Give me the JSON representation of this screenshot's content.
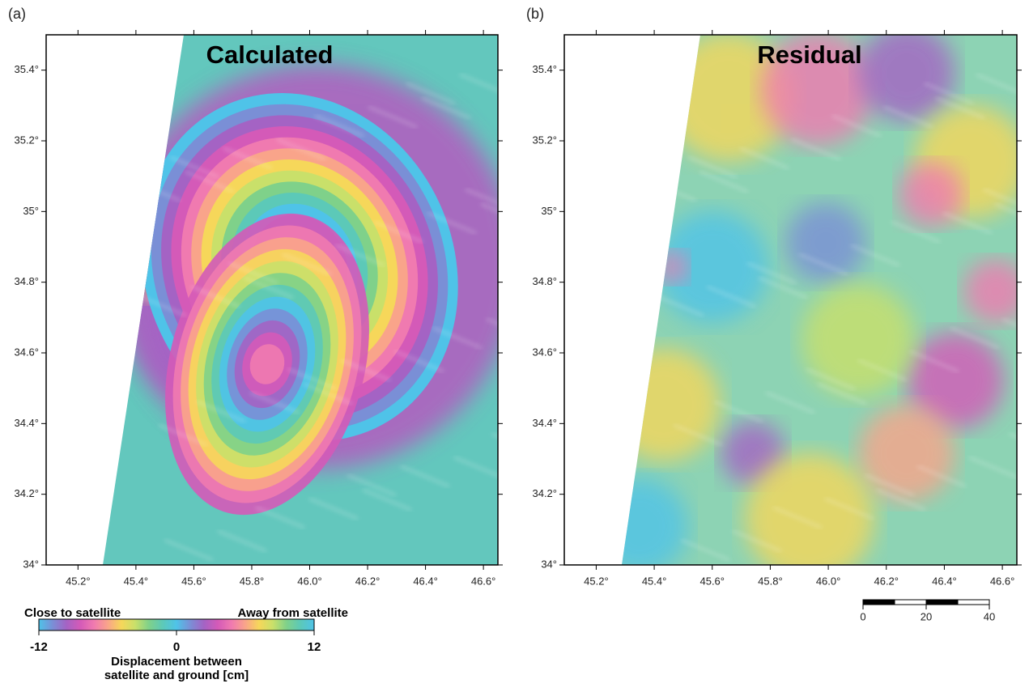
{
  "panels": [
    {
      "label": "(a)",
      "title": "Calculated",
      "xlim": [
        45.09,
        46.65
      ],
      "ylim": [
        34,
        35.5
      ],
      "xticks": [
        {
          "value": 45.2,
          "label": "45.2°"
        },
        {
          "value": 45.4,
          "label": "45.4°"
        },
        {
          "value": 45.6,
          "label": "45.6°"
        },
        {
          "value": 45.8,
          "label": "45.8°"
        },
        {
          "value": 46.0,
          "label": "46.0°"
        },
        {
          "value": 46.2,
          "label": "46.2°"
        },
        {
          "value": 46.4,
          "label": "46.4°"
        },
        {
          "value": 46.6,
          "label": "46.6°"
        }
      ],
      "yticks": [
        {
          "value": 34,
          "label": "34°"
        },
        {
          "value": 34.2,
          "label": "34.2°"
        },
        {
          "value": 34.4,
          "label": "34.4°"
        },
        {
          "value": 34.6,
          "label": "34.6°"
        },
        {
          "value": 34.8,
          "label": "34.8°"
        },
        {
          "value": 35,
          "label": "35°"
        },
        {
          "value": 35.2,
          "label": "35.2°"
        },
        {
          "value": 35.4,
          "label": "35.4°"
        }
      ]
    },
    {
      "label": "(b)",
      "title": "Residual",
      "xlim": [
        45.09,
        46.65
      ],
      "ylim": [
        34,
        35.5
      ],
      "xticks": [
        {
          "value": 45.2,
          "label": "45.2°"
        },
        {
          "value": 45.4,
          "label": "45.4°"
        },
        {
          "value": 45.6,
          "label": "45.6°"
        },
        {
          "value": 45.8,
          "label": "45.8°"
        },
        {
          "value": 46.0,
          "label": "46.0°"
        },
        {
          "value": 46.2,
          "label": "46.2°"
        },
        {
          "value": 46.4,
          "label": "46.4°"
        },
        {
          "value": 46.6,
          "label": "46.6°"
        }
      ],
      "yticks": [
        {
          "value": 34,
          "label": "34°"
        },
        {
          "value": 34.2,
          "label": "34.2°"
        },
        {
          "value": 34.4,
          "label": "34.4°"
        },
        {
          "value": 34.6,
          "label": "34.6°"
        },
        {
          "value": 34.8,
          "label": "34.8°"
        },
        {
          "value": 35,
          "label": "35°"
        },
        {
          "value": 35.2,
          "label": "35.2°"
        },
        {
          "value": 35.4,
          "label": "35.4°"
        }
      ]
    }
  ],
  "colorbar": {
    "left_label": "Close to satellite",
    "right_label": "Away from satellite",
    "lim": [
      -12,
      12
    ],
    "ticks": [
      -12,
      0,
      12
    ],
    "title_lines": [
      "Displacement between",
      "satellite and ground [cm]"
    ]
  },
  "scale_bar": {
    "lim": [
      0,
      40
    ],
    "ticks": [
      0,
      20,
      40
    ]
  }
}
